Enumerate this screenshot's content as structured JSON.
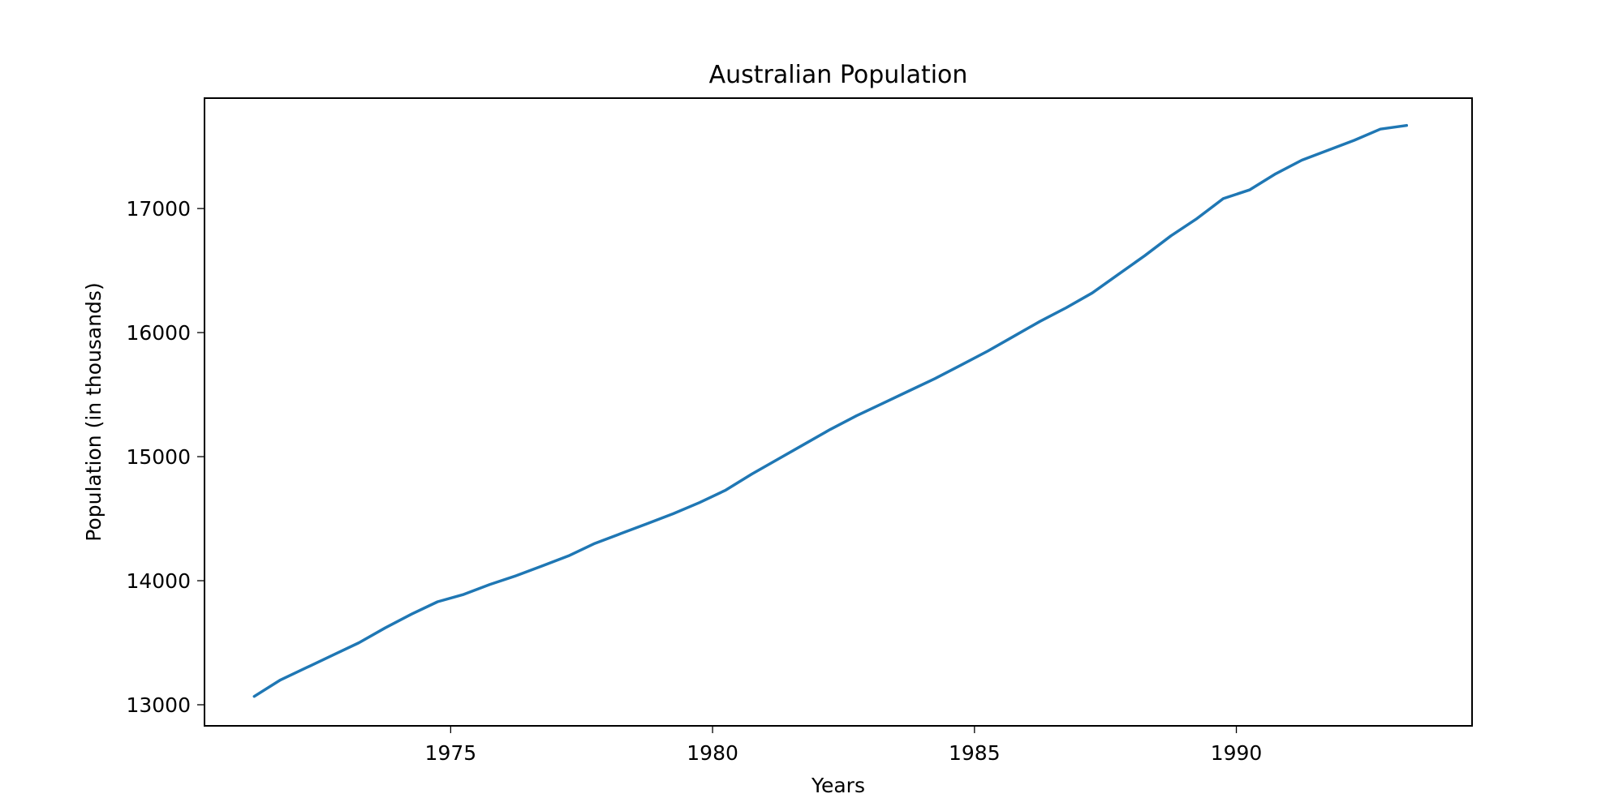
{
  "chart_data": {
    "type": "line",
    "title": "Australian Population",
    "xlabel": "Years",
    "ylabel": "Population (in thousands)",
    "xlim": [
      1970.3,
      1994.5
    ],
    "ylim": [
      12830,
      17890
    ],
    "x_ticks": [
      1975,
      1980,
      1985,
      1990
    ],
    "y_ticks": [
      13000,
      14000,
      15000,
      16000,
      17000
    ],
    "grid": false,
    "legend": "none",
    "colors": {
      "line": "#1f77b4",
      "frame": "#000000"
    },
    "series": [
      {
        "x": [
          1971.25,
          1971.75,
          1972.25,
          1972.75,
          1973.25,
          1973.75,
          1974.25,
          1974.75,
          1975.25,
          1975.75,
          1976.25,
          1976.75,
          1977.25,
          1977.75,
          1978.25,
          1978.75,
          1979.25,
          1979.75,
          1980.25,
          1980.75,
          1981.25,
          1981.75,
          1982.25,
          1982.75,
          1983.25,
          1983.75,
          1984.25,
          1984.75,
          1985.25,
          1985.75,
          1986.25,
          1986.75,
          1987.25,
          1987.75,
          1988.25,
          1988.75,
          1989.25,
          1989.75,
          1990.25,
          1990.75,
          1991.25,
          1991.75,
          1992.25,
          1992.75,
          1993.25
        ],
        "values": [
          13067,
          13200,
          13300,
          13400,
          13500,
          13620,
          13730,
          13830,
          13890,
          13970,
          14040,
          14120,
          14200,
          14300,
          14380,
          14460,
          14540,
          14630,
          14730,
          14860,
          14980,
          15100,
          15220,
          15330,
          15430,
          15530,
          15630,
          15740,
          15850,
          15970,
          16090,
          16200,
          16320,
          16470,
          16620,
          16780,
          16920,
          17080,
          17150,
          17280,
          17390,
          17470,
          17550,
          17640,
          17670
        ]
      }
    ]
  }
}
